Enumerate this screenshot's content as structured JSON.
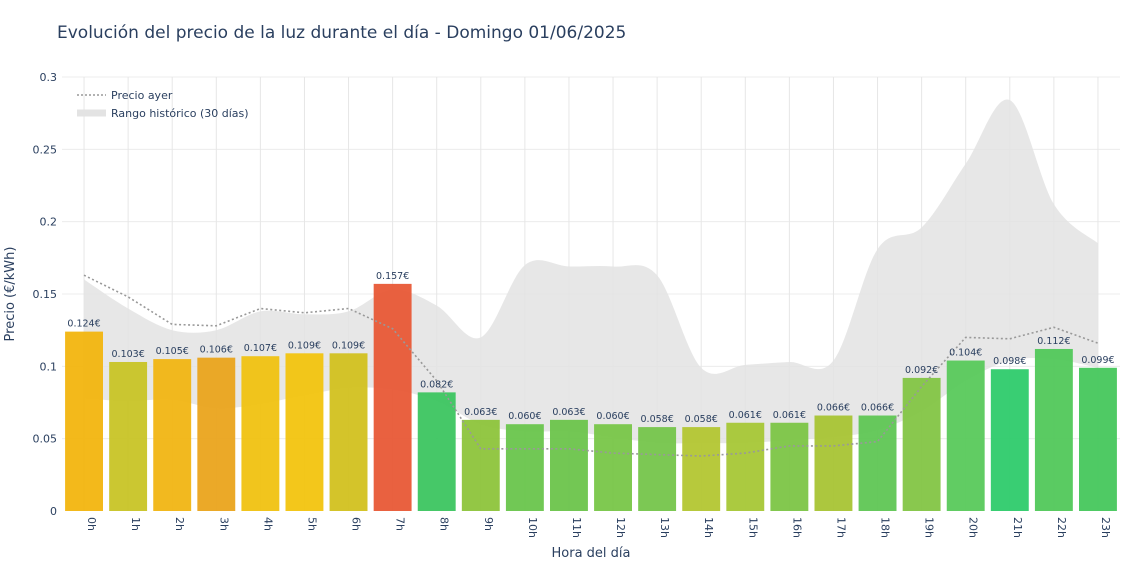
{
  "chart_data": {
    "type": "bar",
    "title": "Evolución del precio de la luz durante el día - Domingo 01/06/2025",
    "xlabel": "Hora del día",
    "ylabel": "Precio (€/kWh)",
    "ylim": [
      0,
      0.3
    ],
    "yticks": [
      0,
      0.05,
      0.1,
      0.15,
      0.2,
      0.25,
      0.3
    ],
    "ytick_labels": [
      "0",
      "0.05",
      "0.1",
      "0.15",
      "0.2",
      "0.25",
      "0.3"
    ],
    "grid": true,
    "legend_position": "top-left",
    "categories": [
      "0h",
      "1h",
      "2h",
      "3h",
      "4h",
      "5h",
      "6h",
      "7h",
      "8h",
      "9h",
      "10h",
      "11h",
      "12h",
      "13h",
      "14h",
      "15h",
      "16h",
      "17h",
      "18h",
      "19h",
      "20h",
      "21h",
      "22h",
      "23h"
    ],
    "values": [
      0.124,
      0.103,
      0.105,
      0.106,
      0.107,
      0.109,
      0.109,
      0.157,
      0.082,
      0.063,
      0.06,
      0.063,
      0.06,
      0.058,
      0.058,
      0.061,
      0.061,
      0.066,
      0.066,
      0.092,
      0.104,
      0.098,
      0.112,
      0.099
    ],
    "value_labels": [
      "0.124€",
      "0.103€",
      "0.105€",
      "0.106€",
      "0.107€",
      "0.109€",
      "0.109€",
      "0.157€",
      "0.082€",
      "0.063€",
      "0.060€",
      "0.063€",
      "0.060€",
      "0.058€",
      "0.058€",
      "0.061€",
      "0.061€",
      "0.066€",
      "0.066€",
      "0.092€",
      "0.104€",
      "0.098€",
      "0.112€",
      "0.099€"
    ],
    "bar_colors": [
      "#f2b50f",
      "#c8c426",
      "#f1b513",
      "#eaa41c",
      "#f0c211",
      "#f2c40f",
      "#d2c11f",
      "#e85836",
      "#3cc560",
      "#8dc43b",
      "#69c54c",
      "#6cc44b",
      "#78c648",
      "#75c54b",
      "#b3c632",
      "#a6c736",
      "#7cc546",
      "#a8c434",
      "#5fc654",
      "#83c544",
      "#58c95b",
      "#2ecb6b",
      "#51c85a",
      "#46c75c"
    ],
    "series": [
      {
        "name": "Precio ayer",
        "type": "line",
        "style": "dotted",
        "color": "#999999",
        "values": [
          0.163,
          0.148,
          0.129,
          0.128,
          0.14,
          0.137,
          0.14,
          0.126,
          0.09,
          0.043,
          0.043,
          0.043,
          0.04,
          0.039,
          0.038,
          0.04,
          0.045,
          0.045,
          0.048,
          0.086,
          0.12,
          0.119,
          0.127,
          0.116
        ]
      },
      {
        "name": "Rango histórico (30 días)",
        "type": "area-range",
        "color": "#e3e3e3",
        "upper": [
          0.16,
          0.14,
          0.125,
          0.125,
          0.138,
          0.136,
          0.138,
          0.153,
          0.142,
          0.12,
          0.17,
          0.169,
          0.169,
          0.163,
          0.099,
          0.101,
          0.103,
          0.104,
          0.181,
          0.196,
          0.24,
          0.284,
          0.212,
          0.185
        ],
        "lower": [
          0.078,
          0.076,
          0.077,
          0.071,
          0.074,
          0.08,
          0.085,
          0.084,
          0.076,
          0.06,
          0.055,
          0.055,
          0.051,
          0.047,
          0.047,
          0.047,
          0.049,
          0.051,
          0.056,
          0.069,
          0.09,
          0.104,
          0.105,
          0.099
        ]
      }
    ]
  }
}
